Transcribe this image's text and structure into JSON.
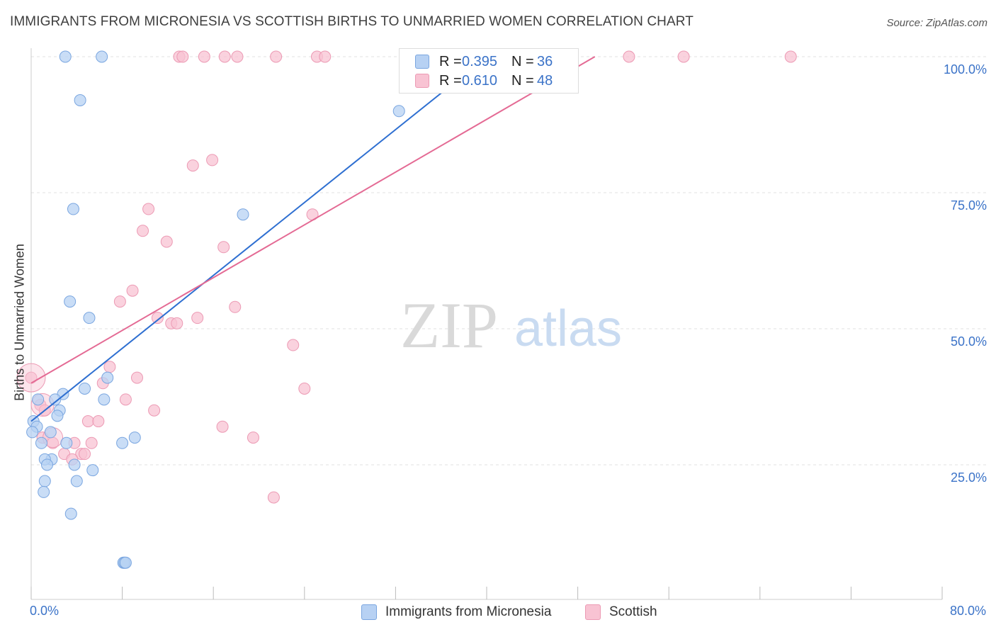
{
  "title": "IMMIGRANTS FROM MICRONESIA VS SCOTTISH BIRTHS TO UNMARRIED WOMEN CORRELATION CHART",
  "source": "Source: ZipAtlas.com",
  "watermark": {
    "zip": "ZIP",
    "atlas": "atlas"
  },
  "legend_top": [
    {
      "r_label": "R =",
      "r_value": "0.395",
      "n_label": "N =",
      "n_value": "36"
    },
    {
      "r_label": "R =",
      "r_value": "0.610",
      "n_label": "N =",
      "n_value": "48"
    }
  ],
  "legend_bottom": [
    {
      "label": "Immigrants from Micronesia"
    },
    {
      "label": "Scottish"
    }
  ],
  "colors": {
    "blue_fill": "#b7d1f3",
    "blue_stroke": "#7aa6e0",
    "blue_line": "#2e6fd1",
    "pink_fill": "#f8c3d3",
    "pink_stroke": "#ec9ab4",
    "pink_line": "#e46a94",
    "grid": "#e2e2e2",
    "tick_text": "#3b73c8"
  },
  "chart_data": {
    "type": "scatter",
    "title": "IMMIGRANTS FROM MICRONESIA VS SCOTTISH BIRTHS TO UNMARRIED WOMEN CORRELATION CHART",
    "xlabel": "",
    "ylabel": "Births to Unmarried Women",
    "xlim": [
      0,
      80
    ],
    "ylim": [
      0,
      100
    ],
    "x_tick_labels": [
      "0.0%",
      "80.0%"
    ],
    "y_tick_labels": [
      "25.0%",
      "50.0%",
      "75.0%",
      "100.0%"
    ],
    "y_ticks": [
      25,
      50,
      75,
      100
    ],
    "grid": true,
    "legend_position": "bottom",
    "series": [
      {
        "name": "Immigrants from Micronesia",
        "r": 0.395,
        "n": 36,
        "trend": {
          "x0": 0,
          "y0": 33,
          "x1": 40,
          "y1": 100
        },
        "points": [
          [
            3.0,
            100
          ],
          [
            6.2,
            100
          ],
          [
            4.3,
            92
          ],
          [
            3.7,
            72
          ],
          [
            18.6,
            71
          ],
          [
            32.3,
            90
          ],
          [
            3.4,
            55
          ],
          [
            5.1,
            52
          ],
          [
            6.7,
            41
          ],
          [
            4.7,
            39
          ],
          [
            2.8,
            38
          ],
          [
            2.1,
            37
          ],
          [
            6.4,
            37
          ],
          [
            0.6,
            37
          ],
          [
            2.5,
            35
          ],
          [
            2.3,
            34
          ],
          [
            0.2,
            33
          ],
          [
            0.5,
            32
          ],
          [
            0.1,
            31
          ],
          [
            1.7,
            31
          ],
          [
            0.9,
            29
          ],
          [
            3.1,
            29
          ],
          [
            8.0,
            29
          ],
          [
            9.1,
            30
          ],
          [
            1.8,
            26
          ],
          [
            1.2,
            26
          ],
          [
            1.4,
            25
          ],
          [
            3.8,
            25
          ],
          [
            5.4,
            24
          ],
          [
            4.0,
            22
          ],
          [
            1.2,
            22
          ],
          [
            1.1,
            20
          ],
          [
            3.5,
            16
          ],
          [
            8.1,
            7
          ],
          [
            8.2,
            7
          ],
          [
            8.3,
            7
          ]
        ]
      },
      {
        "name": "Scottish",
        "r": 0.61,
        "n": 48,
        "trend": {
          "x0": 0,
          "y0": 40,
          "x1": 49.5,
          "y1": 100
        },
        "points": [
          [
            13.0,
            100
          ],
          [
            13.3,
            100
          ],
          [
            15.2,
            100
          ],
          [
            17.0,
            100
          ],
          [
            18.1,
            100
          ],
          [
            21.5,
            100
          ],
          [
            25.1,
            100
          ],
          [
            25.8,
            100
          ],
          [
            52.5,
            100
          ],
          [
            57.3,
            100
          ],
          [
            66.7,
            100
          ],
          [
            14.2,
            80
          ],
          [
            15.9,
            81
          ],
          [
            10.3,
            72
          ],
          [
            9.8,
            68
          ],
          [
            11.9,
            66
          ],
          [
            16.9,
            65
          ],
          [
            24.7,
            71
          ],
          [
            8.9,
            57
          ],
          [
            7.8,
            55
          ],
          [
            17.9,
            54
          ],
          [
            11.1,
            52
          ],
          [
            14.6,
            52
          ],
          [
            12.3,
            51
          ],
          [
            12.8,
            51
          ],
          [
            23.0,
            47
          ],
          [
            6.9,
            43
          ],
          [
            9.3,
            41
          ],
          [
            6.3,
            40
          ],
          [
            24.0,
            39
          ],
          [
            8.3,
            37
          ],
          [
            10.8,
            35
          ],
          [
            0.0,
            41
          ],
          [
            0.8,
            36
          ],
          [
            1.2,
            35
          ],
          [
            5.0,
            33
          ],
          [
            5.9,
            33
          ],
          [
            16.8,
            32
          ],
          [
            19.5,
            30
          ],
          [
            1.0,
            30
          ],
          [
            1.9,
            29
          ],
          [
            3.8,
            29
          ],
          [
            5.3,
            29
          ],
          [
            2.9,
            27
          ],
          [
            4.4,
            27
          ],
          [
            4.7,
            27
          ],
          [
            3.6,
            26
          ],
          [
            21.3,
            19
          ]
        ]
      }
    ]
  }
}
